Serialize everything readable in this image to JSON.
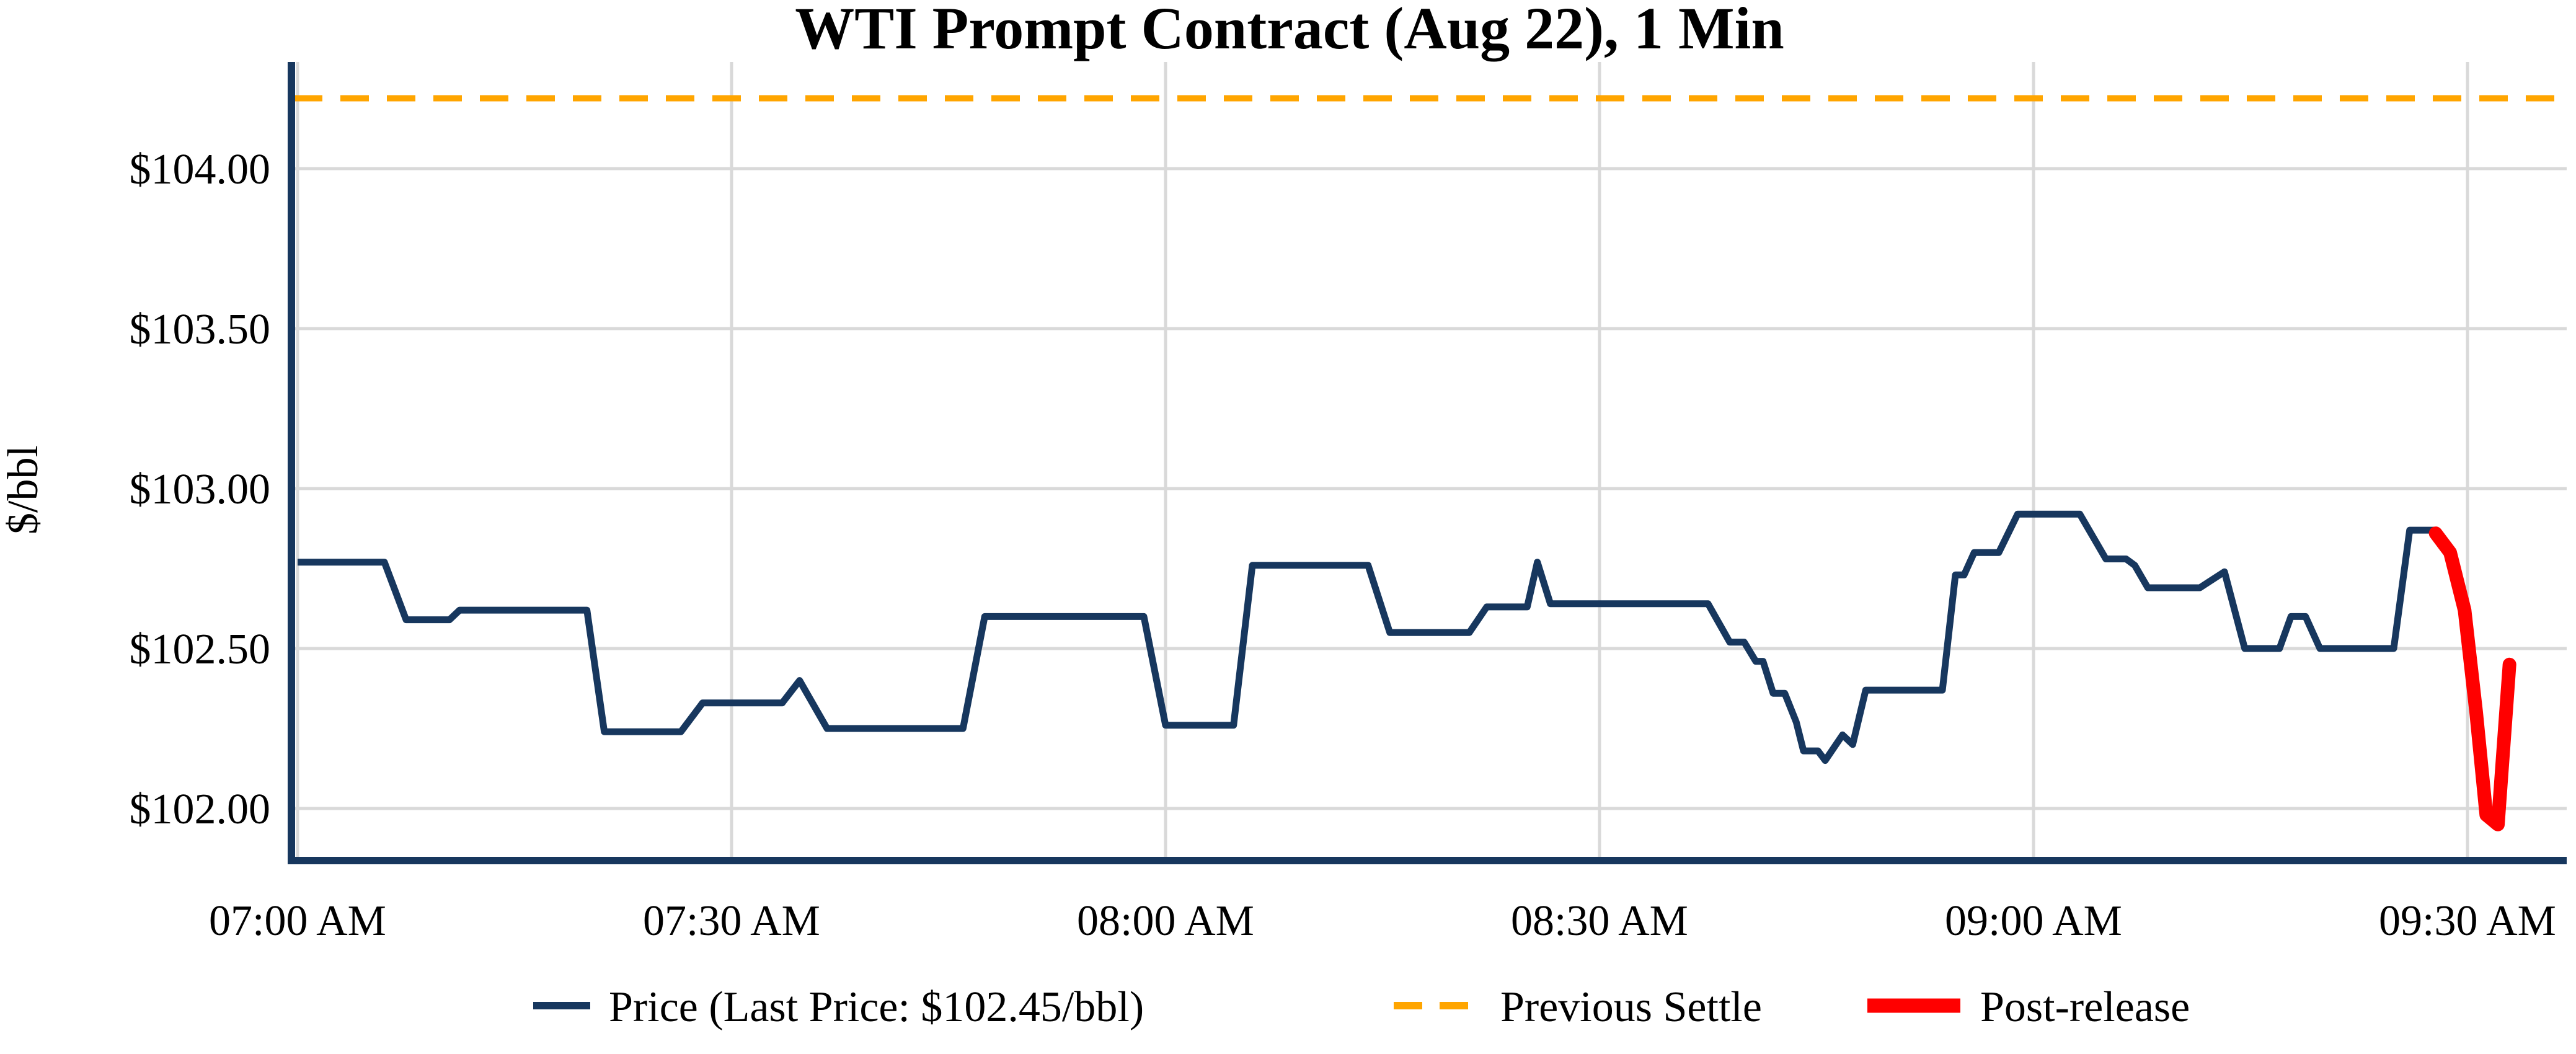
{
  "title": "WTI Prompt Contract (Aug 22), 1 Min",
  "last_price": "$102.45/bbl",
  "legend": {
    "price_label": "Price (Last Price: $102.45/bbl)",
    "settle_label": "Previous Settle",
    "post_label": "Post-release"
  },
  "axes": {
    "ylabel": "$/bbl",
    "y_ticks": [
      {
        "value": 102.0,
        "label": "$102.00"
      },
      {
        "value": 102.5,
        "label": "$102.50"
      },
      {
        "value": 103.0,
        "label": "$103.00"
      },
      {
        "value": 103.5,
        "label": "$103.50"
      },
      {
        "value": 104.0,
        "label": "$104.00"
      }
    ],
    "x_ticks": [
      {
        "minutes": 0,
        "label": "07:00 AM"
      },
      {
        "minutes": 30,
        "label": "07:30 AM"
      },
      {
        "minutes": 60,
        "label": "08:00 AM"
      },
      {
        "minutes": 90,
        "label": "08:30 AM"
      },
      {
        "minutes": 120,
        "label": "09:00 AM"
      },
      {
        "minutes": 150,
        "label": "09:30 AM"
      }
    ]
  },
  "colors": {
    "price": "#17375e",
    "previous_settle": "#ffa500",
    "post_release": "#ff0000",
    "grid": "#d9d9d9",
    "background": "#ffffff",
    "text": "#000000"
  },
  "chart_data": {
    "type": "line",
    "title": "WTI Prompt Contract (Aug 22), 1 Min",
    "xlabel": "",
    "ylabel": "$/bbl",
    "x_unit": "minutes after 07:00 AM, 1-minute bars",
    "xlim": [
      -0.45,
      157.0
    ],
    "ylim": [
      101.84,
      104.33
    ],
    "grid": true,
    "legend_position": "bottom center",
    "previous_settle_value": 104.22,
    "last_price_value": 102.45,
    "series": [
      {
        "name": "Price (Last Price: $102.45/bbl)",
        "style": "solid",
        "points": [
          [
            0,
            102.77
          ],
          [
            6,
            102.77
          ],
          [
            7.5,
            102.59
          ],
          [
            10.5,
            102.59
          ],
          [
            11.2,
            102.62
          ],
          [
            20,
            102.62
          ],
          [
            21.2,
            102.24
          ],
          [
            26.5,
            102.24
          ],
          [
            28,
            102.33
          ],
          [
            33.5,
            102.33
          ],
          [
            34.7,
            102.4
          ],
          [
            36.6,
            102.25
          ],
          [
            46,
            102.25
          ],
          [
            47.5,
            102.6
          ],
          [
            58.5,
            102.6
          ],
          [
            60,
            102.26
          ],
          [
            64.7,
            102.26
          ],
          [
            66,
            102.76
          ],
          [
            74,
            102.76
          ],
          [
            75.5,
            102.55
          ],
          [
            81,
            102.55
          ],
          [
            82.2,
            102.63
          ],
          [
            85,
            102.63
          ],
          [
            85.7,
            102.77
          ],
          [
            86.6,
            102.64
          ],
          [
            97.5,
            102.64
          ],
          [
            99,
            102.52
          ],
          [
            100,
            102.52
          ],
          [
            100.8,
            102.46
          ],
          [
            101.3,
            102.46
          ],
          [
            102,
            102.36
          ],
          [
            102.8,
            102.36
          ],
          [
            103.6,
            102.27
          ],
          [
            104.1,
            102.18
          ],
          [
            105.1,
            102.18
          ],
          [
            105.6,
            102.15
          ],
          [
            106.8,
            102.23
          ],
          [
            107.5,
            102.2
          ],
          [
            108.4,
            102.37
          ],
          [
            113.7,
            102.37
          ],
          [
            114.6,
            102.73
          ],
          [
            115.2,
            102.73
          ],
          [
            115.9,
            102.8
          ],
          [
            117.6,
            102.8
          ],
          [
            118.9,
            102.92
          ],
          [
            123.2,
            102.92
          ],
          [
            125,
            102.78
          ],
          [
            126.4,
            102.78
          ],
          [
            127,
            102.76
          ],
          [
            127.9,
            102.69
          ],
          [
            131.5,
            102.69
          ],
          [
            133.2,
            102.74
          ],
          [
            134.6,
            102.5
          ],
          [
            137,
            102.5
          ],
          [
            137.8,
            102.6
          ],
          [
            138.8,
            102.6
          ],
          [
            139.8,
            102.5
          ],
          [
            144.9,
            102.5
          ],
          [
            146,
            102.87
          ],
          [
            147.8,
            102.87
          ]
        ]
      },
      {
        "name": "Previous Settle",
        "style": "dashed",
        "value": 104.22
      },
      {
        "name": "Post-release",
        "style": "solid-thick",
        "points": [
          [
            147.8,
            102.86
          ],
          [
            148.8,
            102.8
          ],
          [
            149.8,
            102.62
          ],
          [
            150.6,
            102.3
          ],
          [
            151.3,
            101.98
          ],
          [
            152.1,
            101.95
          ],
          [
            152.9,
            102.45
          ]
        ]
      }
    ]
  }
}
